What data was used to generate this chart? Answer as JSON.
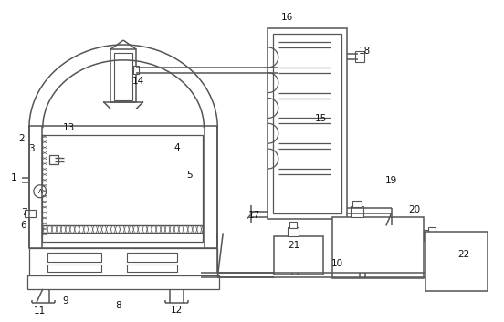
{
  "bg_color": "#ffffff",
  "lc": "#555555",
  "lw": 1.1,
  "fig_w": 5.52,
  "fig_h": 3.53,
  "dpi": 100,
  "labels": [
    [
      13,
      195,
      "1"
    ],
    [
      22,
      152,
      "2"
    ],
    [
      33,
      163,
      "3"
    ],
    [
      193,
      162,
      "4"
    ],
    [
      207,
      192,
      "5"
    ],
    [
      24,
      248,
      "6"
    ],
    [
      24,
      233,
      "7"
    ],
    [
      128,
      336,
      "8"
    ],
    [
      70,
      331,
      "9"
    ],
    [
      370,
      290,
      "10"
    ],
    [
      42,
      342,
      "11"
    ],
    [
      193,
      341,
      "12"
    ],
    [
      74,
      140,
      "13"
    ],
    [
      150,
      88,
      "14"
    ],
    [
      352,
      130,
      "15"
    ],
    [
      315,
      18,
      "16"
    ],
    [
      278,
      236,
      "17"
    ],
    [
      400,
      55,
      "18"
    ],
    [
      430,
      198,
      "19"
    ],
    [
      455,
      230,
      "20"
    ],
    [
      322,
      270,
      "21"
    ],
    [
      510,
      280,
      "22"
    ]
  ]
}
